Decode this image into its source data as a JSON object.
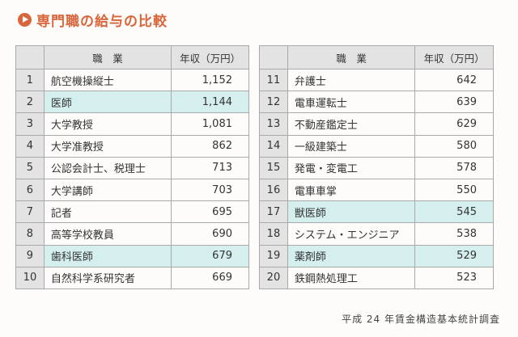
{
  "title": "専門職の給与の比較",
  "header": {
    "number": "",
    "job": "職　業",
    "salary": "年収（万円）"
  },
  "source": "平成 24 年賃金構造基本統計調査",
  "accent_color": "#d9653a",
  "highlight_color": "#d4efee",
  "title_icon": "play-circle-icon",
  "chart_data": {
    "type": "table",
    "columns": [
      "",
      "職　業",
      "年収（万円）"
    ],
    "rows": [
      {
        "rank": "1",
        "job": "航空機操縦士",
        "salary": "1,152",
        "highlight": false
      },
      {
        "rank": "2",
        "job": "医師",
        "salary": "1,144",
        "highlight": true
      },
      {
        "rank": "3",
        "job": "大学教授",
        "salary": "1,081",
        "highlight": false
      },
      {
        "rank": "4",
        "job": "大学准教授",
        "salary": "862",
        "highlight": false
      },
      {
        "rank": "5",
        "job": "公認会計士、税理士",
        "salary": "713",
        "highlight": false
      },
      {
        "rank": "6",
        "job": "大学講師",
        "salary": "703",
        "highlight": false
      },
      {
        "rank": "7",
        "job": "記者",
        "salary": "695",
        "highlight": false
      },
      {
        "rank": "8",
        "job": "高等学校教員",
        "salary": "690",
        "highlight": false
      },
      {
        "rank": "9",
        "job": "歯科医師",
        "salary": "679",
        "highlight": true
      },
      {
        "rank": "10",
        "job": "自然科学系研究者",
        "salary": "669",
        "highlight": false
      },
      {
        "rank": "11",
        "job": "弁護士",
        "salary": "642",
        "highlight": false
      },
      {
        "rank": "12",
        "job": "電車運転士",
        "salary": "639",
        "highlight": false
      },
      {
        "rank": "13",
        "job": "不動産鑑定士",
        "salary": "629",
        "highlight": false
      },
      {
        "rank": "14",
        "job": "一級建築士",
        "salary": "580",
        "highlight": false
      },
      {
        "rank": "15",
        "job": "発電・変電工",
        "salary": "578",
        "highlight": false
      },
      {
        "rank": "16",
        "job": "電車車掌",
        "salary": "550",
        "highlight": false
      },
      {
        "rank": "17",
        "job": "獣医師",
        "salary": "545",
        "highlight": true
      },
      {
        "rank": "18",
        "job": "システム・エンジニア",
        "salary": "538",
        "highlight": false
      },
      {
        "rank": "19",
        "job": "薬剤師",
        "salary": "529",
        "highlight": true
      },
      {
        "rank": "20",
        "job": "鉄鋼熱処理工",
        "salary": "523",
        "highlight": false
      }
    ]
  }
}
